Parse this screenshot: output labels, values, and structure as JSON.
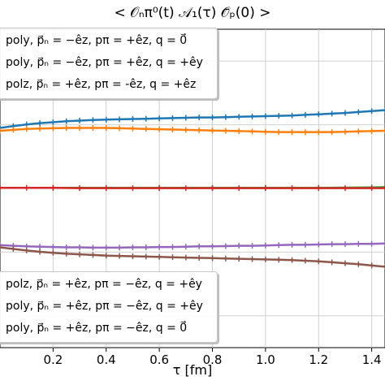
{
  "chart_data": {
    "type": "line",
    "title": "< 𝒪ₙπ⁰(t) 𝒜₁(τ) 𝒪̄ₚ(0) >",
    "xlabel": "τ [fm]",
    "ylabel": "",
    "xlim": [
      0.0,
      1.45
    ],
    "ylim": [
      0,
      1
    ],
    "x_ticks": [
      "0.2",
      "0.4",
      "0.6",
      "0.8",
      "1.0",
      "1.2",
      "1.4"
    ],
    "x_tick_values": [
      0.2,
      0.4,
      0.6,
      0.8,
      1.0,
      1.2,
      1.4
    ],
    "grid": true,
    "series": [
      {
        "color": "#1f77b4",
        "x": [
          0.0,
          0.05,
          0.1,
          0.15,
          0.2,
          0.25,
          0.3,
          0.35,
          0.4,
          0.45,
          0.5,
          0.55,
          0.6,
          0.65,
          0.7,
          0.75,
          0.8,
          0.85,
          0.9,
          0.95,
          1.0,
          1.05,
          1.1,
          1.15,
          1.2,
          1.25,
          1.3,
          1.35,
          1.4,
          1.45
        ],
        "y": [
          0.69,
          0.696,
          0.701,
          0.705,
          0.708,
          0.711,
          0.713,
          0.715,
          0.716,
          0.717,
          0.718,
          0.719,
          0.72,
          0.721,
          0.722,
          0.723,
          0.723,
          0.724,
          0.725,
          0.726,
          0.727,
          0.728,
          0.729,
          0.731,
          0.733,
          0.735,
          0.737,
          0.74,
          0.743,
          0.746
        ]
      },
      {
        "color": "#ff7f0e",
        "x": [
          0.0,
          0.05,
          0.1,
          0.15,
          0.2,
          0.25,
          0.3,
          0.35,
          0.4,
          0.45,
          0.5,
          0.55,
          0.6,
          0.65,
          0.7,
          0.75,
          0.8,
          0.85,
          0.9,
          0.95,
          1.0,
          1.05,
          1.1,
          1.15,
          1.2,
          1.25,
          1.3,
          1.35,
          1.4,
          1.45
        ],
        "y": [
          0.681,
          0.684,
          0.687,
          0.688,
          0.689,
          0.69,
          0.69,
          0.69,
          0.69,
          0.689,
          0.688,
          0.687,
          0.686,
          0.685,
          0.684,
          0.683,
          0.682,
          0.681,
          0.68,
          0.679,
          0.678,
          0.677,
          0.677,
          0.677,
          0.677,
          0.677,
          0.678,
          0.679,
          0.68,
          0.681
        ]
      },
      {
        "color": "#2ca02c",
        "x": [
          0.0,
          0.2,
          0.4,
          0.6,
          0.8,
          1.0,
          1.2,
          1.4,
          1.45
        ],
        "y": [
          0.502,
          0.502,
          0.502,
          0.502,
          0.502,
          0.502,
          0.502,
          0.503,
          0.504
        ]
      },
      {
        "color": "#d62728",
        "x": [
          0.0,
          0.1,
          0.2,
          0.3,
          0.4,
          0.5,
          0.6,
          0.7,
          0.8,
          0.9,
          1.0,
          1.1,
          1.2,
          1.3,
          1.4,
          1.45
        ],
        "y": [
          0.502,
          0.502,
          0.502,
          0.501,
          0.501,
          0.501,
          0.501,
          0.501,
          0.501,
          0.501,
          0.501,
          0.501,
          0.501,
          0.501,
          0.501,
          0.501
        ]
      },
      {
        "color": "#9467bd",
        "x": [
          0.0,
          0.05,
          0.1,
          0.15,
          0.2,
          0.25,
          0.3,
          0.35,
          0.4,
          0.45,
          0.5,
          0.55,
          0.6,
          0.65,
          0.7,
          0.75,
          0.8,
          0.85,
          0.9,
          0.95,
          1.0,
          1.05,
          1.1,
          1.15,
          1.2,
          1.25,
          1.3,
          1.35,
          1.4,
          1.45
        ],
        "y": [
          0.322,
          0.32,
          0.318,
          0.317,
          0.316,
          0.315,
          0.315,
          0.314,
          0.314,
          0.314,
          0.315,
          0.315,
          0.316,
          0.316,
          0.317,
          0.318,
          0.318,
          0.319,
          0.32,
          0.32,
          0.321,
          0.322,
          0.323,
          0.323,
          0.324,
          0.325,
          0.325,
          0.326,
          0.326,
          0.327
        ]
      },
      {
        "color": "#8c564b",
        "x": [
          0.0,
          0.05,
          0.1,
          0.15,
          0.2,
          0.25,
          0.3,
          0.35,
          0.4,
          0.45,
          0.5,
          0.55,
          0.6,
          0.65,
          0.7,
          0.75,
          0.8,
          0.85,
          0.9,
          0.95,
          1.0,
          1.05,
          1.1,
          1.15,
          1.2,
          1.25,
          1.3,
          1.35,
          1.4,
          1.45
        ],
        "y": [
          0.315,
          0.31,
          0.305,
          0.301,
          0.298,
          0.295,
          0.293,
          0.291,
          0.289,
          0.288,
          0.287,
          0.286,
          0.285,
          0.284,
          0.283,
          0.282,
          0.281,
          0.28,
          0.279,
          0.278,
          0.277,
          0.276,
          0.275,
          0.273,
          0.271,
          0.268,
          0.265,
          0.262,
          0.258,
          0.254
        ]
      }
    ]
  },
  "legend_top": [
    {
      "color": "#1f77b4",
      "text": "poly, p⃗ₙ = −êz,  pπ = +êz,  q = 0⃗"
    },
    {
      "color": "#ff7f0e",
      "text": "poly, p⃗ₙ = −êz,  pπ = +êz,  q = +êy"
    },
    {
      "color": "#2ca02c",
      "text": "polz, p⃗ₙ = +êz,  pπ = -êz,  q = +êz"
    }
  ],
  "legend_bottom": [
    {
      "color": "#9467bd",
      "text": "polz, p⃗ₙ = +êz,  pπ = −êz,  q = +êy"
    },
    {
      "color": "#8c564b",
      "text": "poly, p⃗ₙ = +êz,  pπ = −êz,  q = +êy"
    },
    {
      "color": "#e377c2",
      "text": "poly, p⃗ₙ = +êz,  pπ = −êz,  q = 0⃗"
    }
  ]
}
